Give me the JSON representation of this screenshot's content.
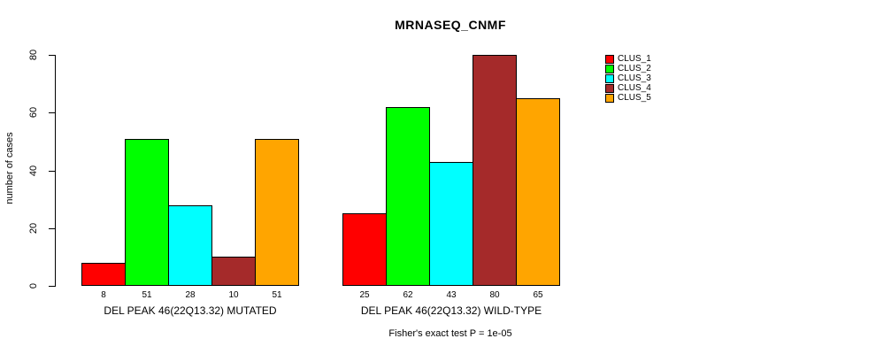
{
  "chart_data": {
    "type": "bar",
    "title": "MRNASEQ_CNMF",
    "ylabel": "number of cases",
    "xlabel": "",
    "ylim": [
      0,
      80
    ],
    "yticks": [
      0,
      20,
      40,
      60,
      80
    ],
    "grid": false,
    "legend_position": "right",
    "categories": [
      "DEL PEAK 46(22Q13.32) MUTATED",
      "DEL PEAK 46(22Q13.32) WILD-TYPE"
    ],
    "series": [
      {
        "name": "CLUS_1",
        "color": "#FF0000",
        "values": [
          8,
          25
        ]
      },
      {
        "name": "CLUS_2",
        "color": "#00FF00",
        "values": [
          51,
          62
        ]
      },
      {
        "name": "CLUS_3",
        "color": "#00FFFF",
        "values": [
          28,
          43
        ]
      },
      {
        "name": "CLUS_4",
        "color": "#A52A2A",
        "values": [
          10,
          80
        ]
      },
      {
        "name": "CLUS_5",
        "color": "#FFA500",
        "values": [
          51,
          65
        ]
      }
    ],
    "bar_value_labels_shown": true,
    "annotation": "Fisher's exact test P = 1e-05",
    "bar_border_color": "#000000",
    "background_color": "#FFFFFF",
    "text_color": "#000000"
  }
}
